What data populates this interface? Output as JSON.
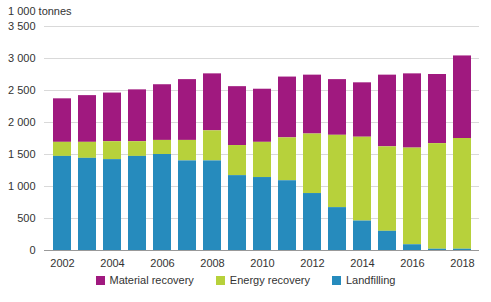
{
  "chart_data": {
    "type": "bar",
    "stacked": true,
    "grid": true,
    "legend": "bottom",
    "y_label": "1 000 tonnes",
    "categories": [
      "2002",
      null,
      "2004",
      null,
      "2006",
      null,
      "2008",
      null,
      "2010",
      null,
      "2012",
      null,
      "2014",
      null,
      "2016",
      null,
      "2018"
    ],
    "series": [
      {
        "name": "Material recovery",
        "color": "#a0197f",
        "values": [
          680,
          730,
          760,
          810,
          870,
          950,
          890,
          920,
          830,
          950,
          920,
          870,
          850,
          1120,
          1160,
          1080,
          1290
        ]
      },
      {
        "name": "Energy recovery",
        "color": "#b7d13b",
        "values": [
          220,
          250,
          280,
          230,
          220,
          320,
          470,
          470,
          550,
          670,
          930,
          1130,
          1310,
          1320,
          1510,
          1650,
          1730
        ]
      },
      {
        "name": "Landfilling",
        "color": "#268bbd",
        "values": [
          1470,
          1440,
          1420,
          1470,
          1500,
          1400,
          1400,
          1170,
          1140,
          1090,
          890,
          670,
          460,
          300,
          90,
          20,
          20
        ]
      }
    ],
    "ylim": [
      0,
      3500
    ],
    "yticks": [
      0,
      500,
      {
        "value": 1000,
        "label": "1 000"
      },
      {
        "value": 1500,
        "label": "1 500"
      },
      {
        "value": 2000,
        "label": "2 000"
      },
      {
        "value": 2500,
        "label": "2 500"
      },
      {
        "value": 3000,
        "label": "3 000"
      },
      {
        "value": 3500,
        "label": "3 500"
      }
    ]
  }
}
